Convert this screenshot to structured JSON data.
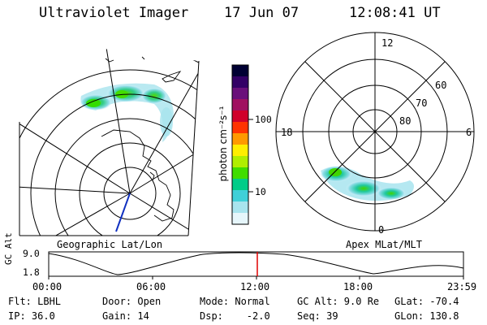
{
  "header": {
    "title": "Ultraviolet Imager",
    "date": "17 Jun 07",
    "time": "12:08:41 UT"
  },
  "left_panel": {
    "caption": "Geographic Lat/Lon"
  },
  "right_panel": {
    "caption": "Apex MLat/MLT",
    "mlt_labels": {
      "top": "12",
      "left": "18",
      "right": "6",
      "bottom": "0"
    },
    "lat_labels": [
      "60",
      "70",
      "80"
    ]
  },
  "colorbar": {
    "unit_label": "photon cm⁻²s⁻¹",
    "ticks": [
      "100",
      "10"
    ],
    "colors": [
      "#000033",
      "#330066",
      "#6a0f7a",
      "#a01060",
      "#d0002a",
      "#ff3300",
      "#ff9900",
      "#ffee00",
      "#b0ee00",
      "#40dd00",
      "#00cc88",
      "#40d0d8",
      "#a8e4ee",
      "#e6f6fb"
    ]
  },
  "timeline": {
    "y_axis_label": "GC Alt",
    "y_ticks": [
      "9.0",
      "1.8"
    ],
    "x_ticks": [
      "00:00",
      "06:00",
      "12:00",
      "18:00",
      "23:59"
    ],
    "marker_color": "#e00000"
  },
  "status": {
    "col1": [
      "Flt: LBHL",
      "IP: 36.0"
    ],
    "col2": [
      "Door: Open",
      "Gain: 14"
    ],
    "col3": [
      "Mode: Normal",
      "Dsp:    -2.0"
    ],
    "col4": [
      "GC Alt: 9.0 Re",
      "Seq: 39"
    ],
    "col5": [
      "GLat: -70.4",
      "GLon: 130.8"
    ]
  }
}
